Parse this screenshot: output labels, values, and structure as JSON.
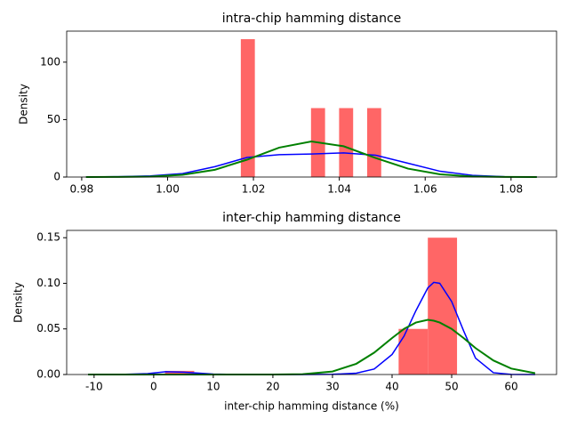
{
  "chart_data": [
    {
      "type": "histogram",
      "title": "intra-chip hamming distance",
      "ylabel": "Density",
      "bins": [
        1.01706,
        1.02033,
        1.0236,
        1.02687,
        1.03014,
        1.03341,
        1.03668,
        1.03995,
        1.04322,
        1.04649,
        1.04976
      ],
      "values": [
        120,
        0,
        0,
        0,
        0,
        60,
        0,
        60,
        0,
        60
      ],
      "color": "#ff6666",
      "curves": [
        {
          "color": "blue",
          "x": [
            0.981,
            0.9885,
            0.996,
            1.0035,
            1.011,
            1.0185,
            1.026,
            1.0335,
            1.041,
            1.0485,
            1.056,
            1.0635,
            1.071,
            1.0785,
            1.086
          ],
          "values": [
            0,
            0.3,
            1,
            3,
            9,
            17,
            19.5,
            20,
            21,
            19,
            12,
            5,
            1.5,
            0.3,
            0
          ]
        },
        {
          "color": "green",
          "x": [
            0.981,
            0.9885,
            0.996,
            1.0035,
            1.011,
            1.0185,
            1.026,
            1.0335,
            1.041,
            1.0485,
            1.056,
            1.0635,
            1.071,
            1.0785,
            1.086
          ],
          "values": [
            0,
            0.06,
            0.4,
            1.9,
            6.3,
            15.1,
            25.6,
            31,
            26.8,
            16.5,
            7.3,
            2.3,
            0.5,
            0.1,
            0
          ]
        }
      ],
      "xlim": [
        0.9765,
        1.0906
      ],
      "ylim": [
        0,
        127
      ],
      "xticks": [
        0.98,
        {
          "value": 1,
          "label": "1.00"
        },
        1.02,
        1.04,
        1.06,
        1.08
      ],
      "yticks": [
        0,
        50,
        100
      ]
    },
    {
      "type": "histogram",
      "title": "inter-chip hamming distance",
      "ylabel": "Density",
      "xlabel": "inter-chip hamming distance (%)",
      "bins": [
        1.9,
        6.8,
        11.7,
        16.6,
        21.5,
        26.4,
        31.3,
        36.2,
        41.1,
        46.0,
        50.9
      ],
      "values": [
        0.004,
        0,
        0,
        0,
        0,
        0,
        0,
        0,
        0.05,
        0.15
      ],
      "color": "#ff6666",
      "curves": [
        {
          "color": "blue",
          "x": [
            -11,
            -6,
            -1,
            2,
            5,
            10,
            15,
            20,
            25,
            30,
            34,
            37,
            40,
            42,
            44,
            46,
            47,
            48,
            50,
            52,
            54,
            57,
            60,
            64
          ],
          "values": [
            0,
            0,
            0.001,
            0.003,
            0.0025,
            0.0005,
            0,
            0,
            0,
            0.0002,
            0.0015,
            0.006,
            0.022,
            0.042,
            0.07,
            0.095,
            0.101,
            0.1,
            0.08,
            0.048,
            0.018,
            0.002,
            0.0001,
            0
          ]
        },
        {
          "color": "green",
          "x": [
            -11,
            -6,
            -1,
            2,
            5,
            10,
            15,
            20,
            25,
            30,
            34,
            37,
            40,
            42,
            44,
            46,
            47,
            48,
            50,
            52,
            54,
            57,
            60,
            64
          ],
          "values": [
            0,
            0,
            0,
            0,
            0,
            0,
            0,
            0,
            0.0004,
            0.0033,
            0.0118,
            0.024,
            0.04,
            0.05,
            0.057,
            0.06,
            0.059,
            0.057,
            0.05,
            0.04,
            0.029,
            0.0154,
            0.0065,
            0.0015
          ]
        }
      ],
      "xlim": [
        -14.6,
        67.6
      ],
      "ylim": [
        0,
        0.158
      ],
      "xticks": [
        -10,
        0,
        10,
        20,
        30,
        40,
        50,
        60
      ],
      "yticks": [
        {
          "value": 0,
          "label": "0.00"
        },
        0.05,
        {
          "value": 0.1,
          "label": "0.10"
        },
        0.15
      ]
    }
  ]
}
